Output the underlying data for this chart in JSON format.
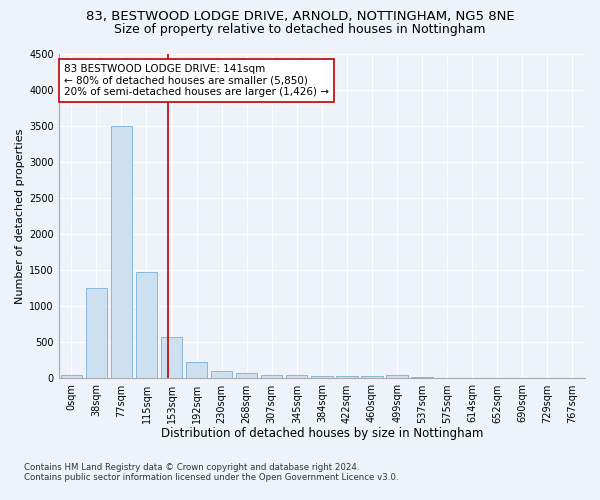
{
  "title1": "83, BESTWOOD LODGE DRIVE, ARNOLD, NOTTINGHAM, NG5 8NE",
  "title2": "Size of property relative to detached houses in Nottingham",
  "xlabel": "Distribution of detached houses by size in Nottingham",
  "ylabel": "Number of detached properties",
  "footnote1": "Contains HM Land Registry data © Crown copyright and database right 2024.",
  "footnote2": "Contains public sector information licensed under the Open Government Licence v3.0.",
  "bar_labels": [
    "0sqm",
    "38sqm",
    "77sqm",
    "115sqm",
    "153sqm",
    "192sqm",
    "230sqm",
    "268sqm",
    "307sqm",
    "345sqm",
    "384sqm",
    "422sqm",
    "460sqm",
    "499sqm",
    "537sqm",
    "575sqm",
    "614sqm",
    "652sqm",
    "690sqm",
    "729sqm",
    "767sqm"
  ],
  "bar_values": [
    50,
    1250,
    3500,
    1475,
    575,
    225,
    110,
    80,
    50,
    45,
    40,
    30,
    30,
    50,
    25,
    0,
    0,
    0,
    0,
    0,
    0
  ],
  "bar_color": "#cce0f0",
  "bar_edge_color": "#7bafd4",
  "vline_x": 3.85,
  "vline_color": "#c00000",
  "ylim": [
    0,
    4500
  ],
  "yticks": [
    0,
    500,
    1000,
    1500,
    2000,
    2500,
    3000,
    3500,
    4000,
    4500
  ],
  "annotation_line1": "83 BESTWOOD LODGE DRIVE: 141sqm",
  "annotation_line2": "← 80% of detached houses are smaller (5,850)",
  "annotation_line3": "20% of semi-detached houses are larger (1,426) →",
  "annotation_box_color": "#ffffff",
  "annotation_box_edge_color": "#c00000",
  "bg_color": "#eef2f9",
  "plot_bg_color": "#eef2f9",
  "grid_color": "#ffffff",
  "title1_fontsize": 9.5,
  "title2_fontsize": 9,
  "xlabel_fontsize": 8.5,
  "ylabel_fontsize": 8,
  "annotation_fontsize": 7.5,
  "tick_fontsize": 7
}
